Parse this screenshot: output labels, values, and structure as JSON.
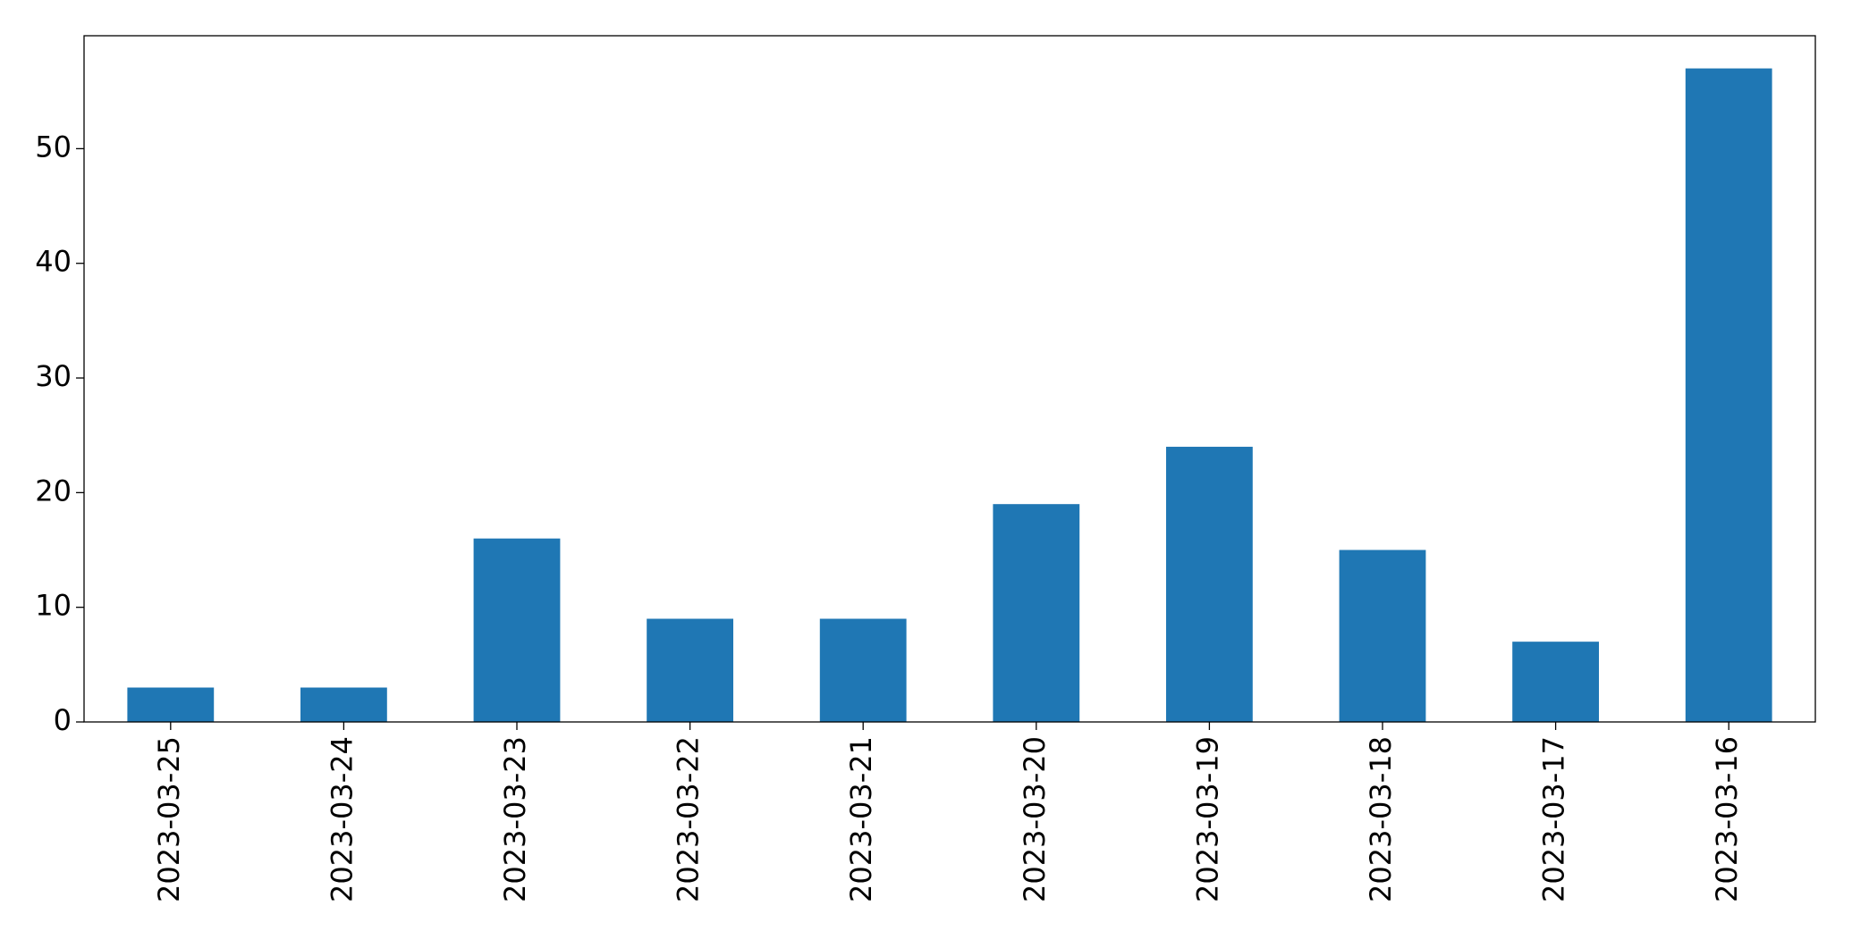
{
  "chart_data": {
    "type": "bar",
    "categories": [
      "2023-03-25",
      "2023-03-24",
      "2023-03-23",
      "2023-03-22",
      "2023-03-21",
      "2023-03-20",
      "2023-03-19",
      "2023-03-18",
      "2023-03-17",
      "2023-03-16"
    ],
    "values": [
      3,
      3,
      16,
      9,
      9,
      19,
      24,
      15,
      7,
      57
    ],
    "color": "#1f77b4",
    "ylim": [
      0,
      59.85
    ],
    "yticks": [
      0,
      10,
      20,
      30,
      40,
      50
    ],
    "grid": false
  }
}
